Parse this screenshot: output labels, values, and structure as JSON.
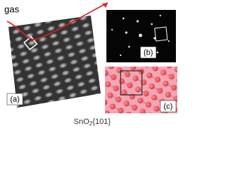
{
  "labels": {
    "gas": "gas",
    "a": "(a)",
    "b": "(b)",
    "c": "(c)"
  },
  "caption": {
    "formula": "SnO",
    "subscript": "2",
    "plane": "{101}"
  }
}
